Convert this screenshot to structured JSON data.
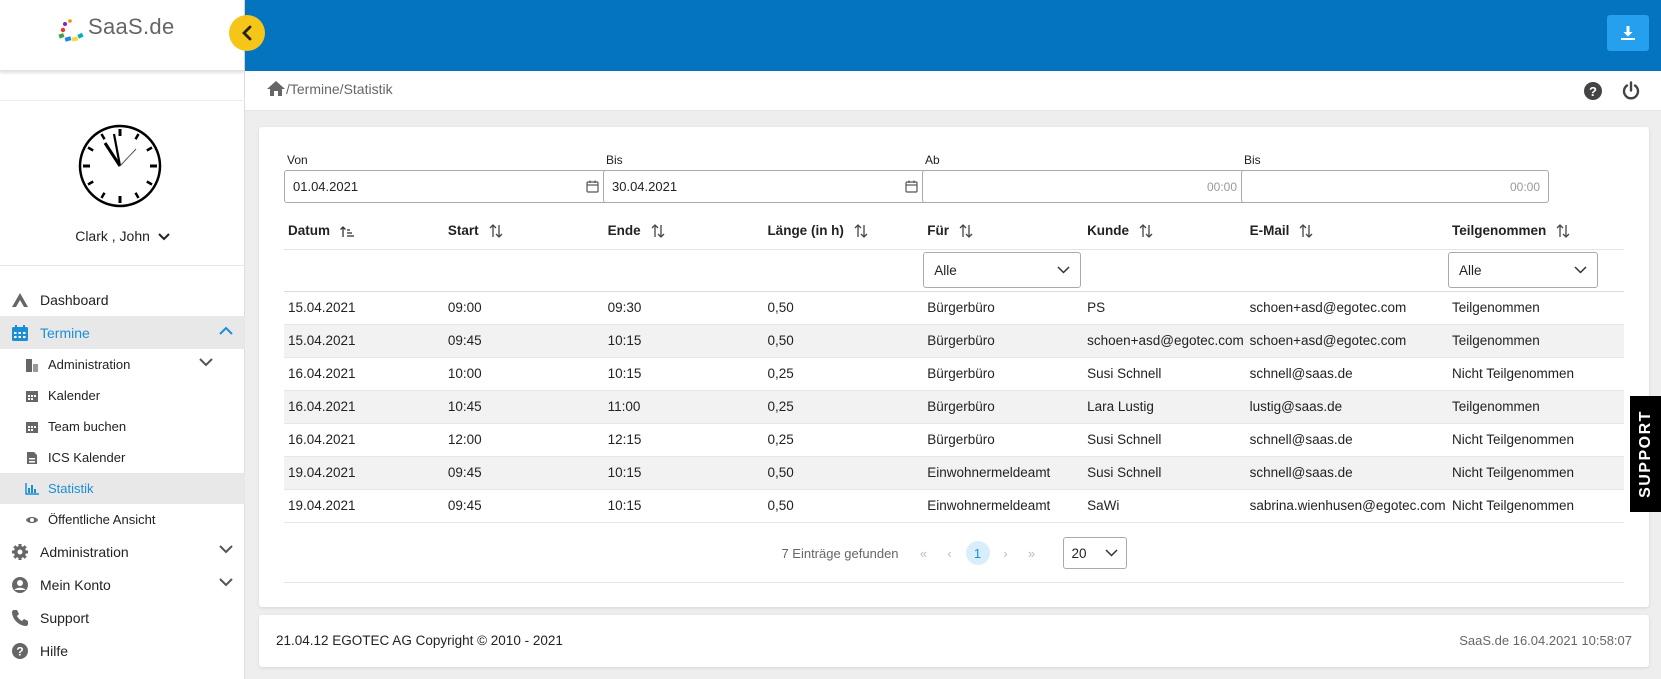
{
  "brand": {
    "logo_text": "SaaS.de"
  },
  "user": {
    "name": "Clark , John"
  },
  "nav": {
    "dashboard": "Dashboard",
    "termine": "Termine",
    "termine_sub": {
      "administration": "Administration",
      "kalender": "Kalender",
      "team_buchen": "Team buchen",
      "ics_kalender": "ICS Kalender",
      "statistik": "Statistik",
      "oeffentliche_ansicht": "Öffentliche Ansicht"
    },
    "administration": "Administration",
    "mein_konto": "Mein Konto",
    "support": "Support",
    "hilfe": "Hilfe"
  },
  "breadcrumb": {
    "path": "/Termine/Statistik"
  },
  "filters": {
    "von": {
      "label": "Von",
      "value": "01.04.2021"
    },
    "bis": {
      "label": "Bis",
      "value": "30.04.2021"
    },
    "ab_time": {
      "label": "Ab",
      "placeholder": "00:00"
    },
    "bis_time": {
      "label": "Bis",
      "placeholder": "00:00"
    }
  },
  "table": {
    "headers": [
      "Datum",
      "Start",
      "Ende",
      "Länge (in h)",
      "Für",
      "Kunde",
      "E-Mail",
      "Teilgenommen"
    ],
    "filter_fuer": "Alle",
    "filter_teilgenommen": "Alle",
    "rows": [
      [
        "15.04.2021",
        "09:00",
        "09:30",
        "0,50",
        "Bürgerbüro",
        "PS",
        "schoen+asd@egotec.com",
        "Teilgenommen"
      ],
      [
        "15.04.2021",
        "09:45",
        "10:15",
        "0,50",
        "Bürgerbüro",
        "schoen+asd@egotec.com",
        "schoen+asd@egotec.com",
        "Teilgenommen"
      ],
      [
        "16.04.2021",
        "10:00",
        "10:15",
        "0,25",
        "Bürgerbüro",
        "Susi Schnell",
        "schnell@saas.de",
        "Nicht Teilgenommen"
      ],
      [
        "16.04.2021",
        "10:45",
        "11:00",
        "0,25",
        "Bürgerbüro",
        "Lara Lustig",
        "lustig@saas.de",
        "Teilgenommen"
      ],
      [
        "16.04.2021",
        "12:00",
        "12:15",
        "0,25",
        "Bürgerbüro",
        "Susi Schnell",
        "schnell@saas.de",
        "Nicht Teilgenommen"
      ],
      [
        "19.04.2021",
        "09:45",
        "10:15",
        "0,50",
        "Einwohnermeldeamt",
        "Susi Schnell",
        "schnell@saas.de",
        "Nicht Teilgenommen"
      ],
      [
        "19.04.2021",
        "09:45",
        "10:15",
        "0,50",
        "Einwohnermeldeamt",
        "SaWi",
        "sabrina.wienhusen@egotec.com",
        "Nicht Teilgenommen"
      ]
    ]
  },
  "pager": {
    "count_text": "7 Einträge gefunden",
    "first": "«",
    "prev": "‹",
    "current": "1",
    "next": "›",
    "last": "»",
    "page_size": "20"
  },
  "footer": {
    "left": "21.04.12 EGOTEC AG Copyright © 2010 - 2021",
    "right": "SaaS.de  16.04.2021 10:58:07"
  },
  "support_tab": "SUPPORT",
  "colors": {
    "topbar": "#0474c0",
    "accent": "#1a8fd6",
    "toggle": "#f5c518"
  }
}
